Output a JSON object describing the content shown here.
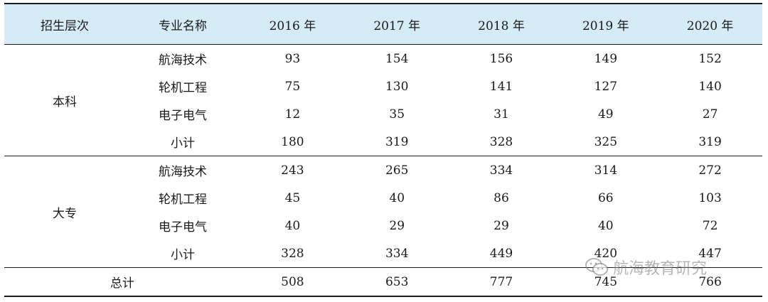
{
  "header": {
    "level": "招生层次",
    "major": "专业名称",
    "years": [
      "2016 年",
      "2017 年",
      "2018 年",
      "2019 年",
      "2020 年"
    ]
  },
  "groups": [
    {
      "level": "本科",
      "rows": [
        {
          "major": "航海技术",
          "values": [
            "93",
            "154",
            "156",
            "149",
            "152"
          ]
        },
        {
          "major": "轮机工程",
          "values": [
            "75",
            "130",
            "141",
            "127",
            "140"
          ]
        },
        {
          "major": "电子电气",
          "values": [
            "12",
            "35",
            "31",
            "49",
            "27"
          ]
        },
        {
          "major": "小计",
          "values": [
            "180",
            "319",
            "328",
            "325",
            "319"
          ]
        }
      ]
    },
    {
      "level": "大专",
      "rows": [
        {
          "major": "航海技术",
          "values": [
            "243",
            "265",
            "334",
            "314",
            "272"
          ]
        },
        {
          "major": "轮机工程",
          "values": [
            "45",
            "40",
            "86",
            "66",
            "103"
          ]
        },
        {
          "major": "电子电气",
          "values": [
            "40",
            "29",
            "29",
            "40",
            "72"
          ]
        },
        {
          "major": "小计",
          "values": [
            "328",
            "334",
            "449",
            "420",
            "447"
          ]
        }
      ]
    }
  ],
  "total": {
    "label": "总计",
    "values": [
      "508",
      "653",
      "777",
      "745",
      "766"
    ]
  },
  "watermark": {
    "text": "航海教育研究",
    "icon": "wechat-icon"
  }
}
